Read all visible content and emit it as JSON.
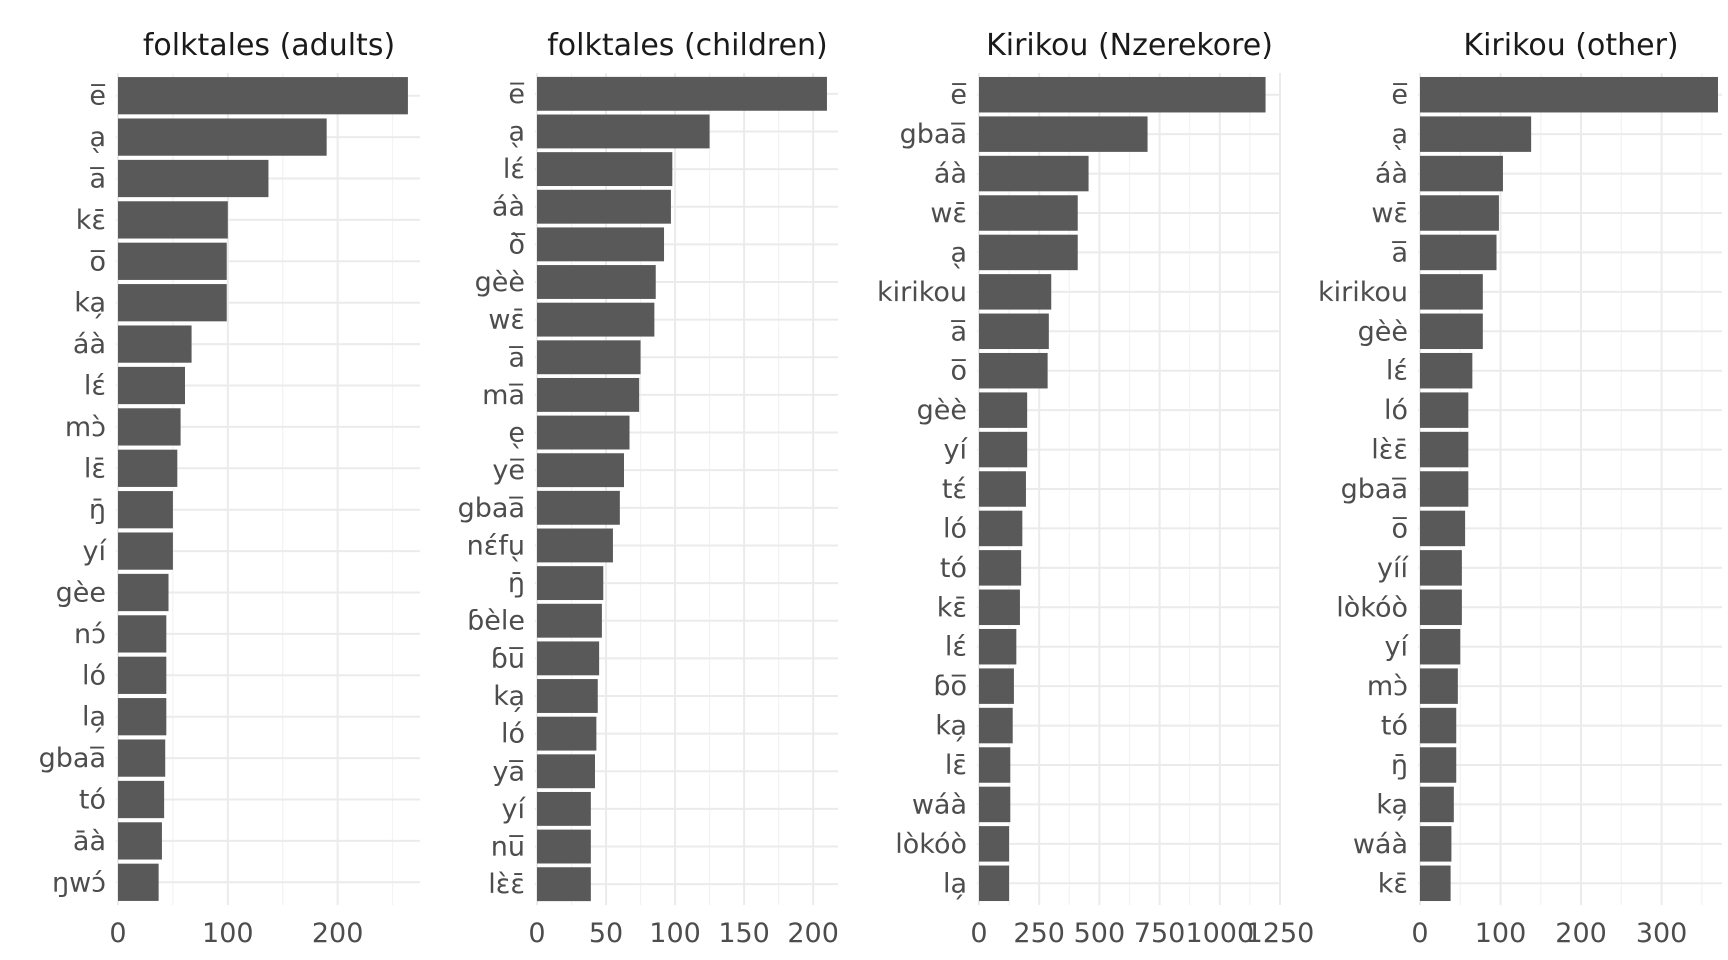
{
  "chart_data": [
    {
      "type": "bar",
      "orientation": "horizontal",
      "title": "folktales (adults)",
      "categories": [
        "e̅",
        "a̖",
        "a̅",
        "kɛ̄",
        "o̅",
        "ka̗",
        "áà",
        "lɛ́",
        "mɔ̀",
        "lɛ̄",
        "ŋ̄",
        "yí",
        "gèe",
        "nɔ́",
        "ló",
        "la̗",
        "gbaa̅",
        "tó",
        "āà",
        "ŋwɔ́"
      ],
      "values": [
        264,
        190,
        137,
        100,
        99,
        99,
        67,
        61,
        57,
        54,
        50,
        50,
        46,
        44,
        44,
        44,
        43,
        42,
        40,
        37
      ],
      "xlim": [
        0,
        275
      ],
      "xticks": [
        0,
        100,
        200
      ],
      "grid": true
    },
    {
      "type": "bar",
      "orientation": "horizontal",
      "title": "folktales (children)",
      "categories": [
        "e̅",
        "a̖",
        "lɛ́",
        "áà",
        "ò̅",
        "gèè",
        "wɛ̄",
        "a̅",
        "ma̅",
        "e̖",
        "ye̅",
        "gbaa̅",
        "nɛ́fu̖",
        "ŋ̄",
        "ɓèle",
        "ɓu̅",
        "ka̗",
        "ló",
        "ya̅",
        "yí",
        "nu̅",
        "lɛ̀ɛ̄"
      ],
      "values": [
        210,
        125,
        98,
        97,
        92,
        86,
        85,
        75,
        74,
        67,
        63,
        60,
        55,
        48,
        47,
        45,
        44,
        43,
        42,
        39,
        39,
        39
      ],
      "xlim": [
        0,
        218
      ],
      "xticks": [
        0,
        50,
        100,
        150,
        200
      ],
      "grid": true
    },
    {
      "type": "bar",
      "orientation": "horizontal",
      "title": "Kirikou (Nzerekore)",
      "categories": [
        "e̅",
        "gbaa̅",
        "áà",
        "wɛ̄",
        "a̖",
        "kirikou",
        "a̅",
        "o̅",
        "gèè",
        "yí",
        "tɛ́",
        "ló",
        "tó",
        "kɛ̄",
        "lɛ́",
        "ɓo̅",
        "ka̗",
        "lɛ̄",
        "wáà",
        "lòkóò",
        "la̗"
      ],
      "values": [
        1190,
        700,
        455,
        410,
        410,
        300,
        290,
        285,
        200,
        200,
        195,
        180,
        175,
        170,
        155,
        145,
        140,
        130,
        130,
        125,
        125
      ],
      "xlim": [
        0,
        1250
      ],
      "xticks": [
        0,
        250,
        500,
        750,
        1000,
        1250
      ],
      "grid": true
    },
    {
      "type": "bar",
      "orientation": "horizontal",
      "title": "Kirikou (other)",
      "categories": [
        "e̅",
        "a̖",
        "áà",
        "wɛ̄",
        "a̅",
        "kirikou",
        "gèè",
        "lɛ́",
        "ló",
        "lɛ̀ɛ̄",
        "gbaa̅",
        "o̅",
        "yíí",
        "lòkóò",
        "yí",
        "mɔ̀",
        "tó",
        "ŋ̄",
        "ka̗",
        "wáà",
        "kɛ̄"
      ],
      "values": [
        370,
        138,
        103,
        98,
        95,
        78,
        78,
        65,
        60,
        60,
        60,
        56,
        52,
        52,
        50,
        47,
        45,
        45,
        42,
        39,
        38
      ],
      "xlim": [
        0,
        375
      ],
      "xticks": [
        0,
        100,
        200,
        300
      ],
      "grid": true
    }
  ]
}
